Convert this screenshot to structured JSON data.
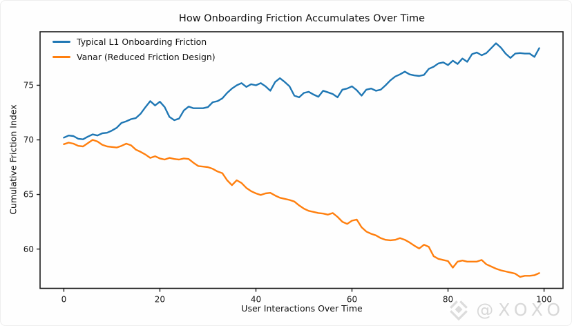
{
  "chart_data": {
    "type": "line",
    "title": "How Onboarding Friction Accumulates Over Time",
    "xlabel": "User Interactions Over Time",
    "ylabel": "Cumulative Friction Index",
    "x_start": 0,
    "x_step": 1,
    "n_points": 100,
    "xticks": [
      0,
      20,
      40,
      60,
      80,
      100
    ],
    "yticks": [
      60,
      65,
      70,
      75
    ],
    "xlim": [
      -4.95,
      103.95
    ],
    "ylim": [
      56.4,
      79.9
    ],
    "grid": false,
    "legend_position": "upper-left",
    "legend_frame": false,
    "series": [
      {
        "name": "Typical L1 Onboarding Friction",
        "color": "#1f77b4",
        "values": [
          70.2,
          70.4,
          70.35,
          70.1,
          70.05,
          70.3,
          70.5,
          70.4,
          70.6,
          70.65,
          70.85,
          71.1,
          71.55,
          71.7,
          71.9,
          72.0,
          72.4,
          73.0,
          73.55,
          73.15,
          73.5,
          73.0,
          72.1,
          71.8,
          71.95,
          72.7,
          73.05,
          72.9,
          72.9,
          72.9,
          73.0,
          73.45,
          73.55,
          73.8,
          74.3,
          74.7,
          75.0,
          75.2,
          74.85,
          75.1,
          75.0,
          75.2,
          74.9,
          74.5,
          75.3,
          75.65,
          75.3,
          74.9,
          74.05,
          73.9,
          74.3,
          74.4,
          74.15,
          73.95,
          74.5,
          74.35,
          74.2,
          73.9,
          74.6,
          74.7,
          74.9,
          74.55,
          74.05,
          74.6,
          74.7,
          74.5,
          74.6,
          75.0,
          75.45,
          75.8,
          76.0,
          76.25,
          76.0,
          75.9,
          75.85,
          75.95,
          76.5,
          76.7,
          77.0,
          77.1,
          76.85,
          77.25,
          76.95,
          77.45,
          77.15,
          77.85,
          78.0,
          77.75,
          77.95,
          78.4,
          78.85,
          78.45,
          77.9,
          77.5,
          77.9,
          77.95,
          77.9,
          77.9,
          77.6,
          78.4
        ]
      },
      {
        "name": "Vanar (Reduced Friction Design)",
        "color": "#ff7f0e",
        "values": [
          69.6,
          69.75,
          69.65,
          69.45,
          69.4,
          69.7,
          70.0,
          69.85,
          69.55,
          69.4,
          69.35,
          69.3,
          69.45,
          69.65,
          69.5,
          69.1,
          68.9,
          68.65,
          68.35,
          68.5,
          68.3,
          68.2,
          68.35,
          68.25,
          68.2,
          68.3,
          68.25,
          67.9,
          67.6,
          67.55,
          67.5,
          67.35,
          67.1,
          66.95,
          66.3,
          65.85,
          66.3,
          66.05,
          65.6,
          65.3,
          65.1,
          64.95,
          65.1,
          65.15,
          64.9,
          64.7,
          64.6,
          64.5,
          64.35,
          64.0,
          63.7,
          63.5,
          63.4,
          63.3,
          63.25,
          63.15,
          63.3,
          62.95,
          62.5,
          62.3,
          62.6,
          62.7,
          62.0,
          61.6,
          61.4,
          61.25,
          61.0,
          60.85,
          60.8,
          60.85,
          61.0,
          60.85,
          60.6,
          60.3,
          60.05,
          60.4,
          60.2,
          59.35,
          59.1,
          59.0,
          58.9,
          58.3,
          58.85,
          58.95,
          58.85,
          58.85,
          58.85,
          59.0,
          58.6,
          58.4,
          58.2,
          58.05,
          57.95,
          57.85,
          57.75,
          57.45,
          57.55,
          57.55,
          57.6,
          57.8
        ]
      }
    ]
  },
  "watermark": {
    "icon": "diamond-logo",
    "text": "@XOXO"
  }
}
